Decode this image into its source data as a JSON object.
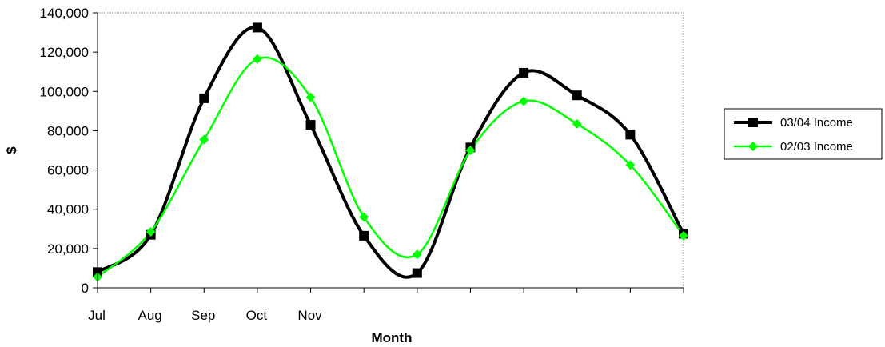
{
  "chart_data": {
    "type": "line",
    "xlabel": "Month",
    "ylabel": "$",
    "ylim": [
      0,
      140000
    ],
    "yticks": [
      0,
      20000,
      40000,
      60000,
      80000,
      100000,
      120000,
      140000
    ],
    "ytick_labels": [
      "0",
      "20,000",
      "40,000",
      "60,000",
      "80,000",
      "100,000",
      "120,000",
      "140,000"
    ],
    "categories": [
      "Jul",
      "Aug",
      "Sep",
      "Oct",
      "Nov",
      "",
      "",
      "",
      "",
      "",
      "",
      ""
    ],
    "grid": false,
    "smooth": true,
    "legend_position": "right",
    "series": [
      {
        "name": "03/04 Income",
        "color": "#000000",
        "marker": "square",
        "values": [
          8000,
          27000,
          96500,
          132500,
          83000,
          26500,
          7500,
          71500,
          109500,
          98000,
          78000,
          27500
        ]
      },
      {
        "name": "02/03 Income",
        "color": "#00ff00",
        "marker": "diamond",
        "values": [
          5500,
          28500,
          75500,
          116500,
          97000,
          36000,
          17000,
          70000,
          95000,
          83500,
          62500,
          26500
        ]
      }
    ]
  }
}
